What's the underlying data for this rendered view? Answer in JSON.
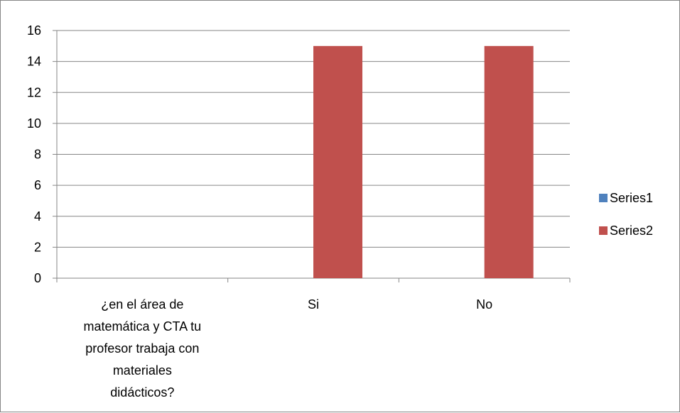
{
  "chart_data": {
    "type": "bar",
    "categories": [
      "¿en el área de matemática y CTA tu profesor trabaja con materiales didácticos?",
      "Si",
      "No"
    ],
    "category_label_lines": [
      [
        "¿en el área de",
        "matemática y CTA tu",
        "profesor trabaja con",
        "materiales",
        "didácticos?"
      ],
      [
        "Si"
      ],
      [
        "No"
      ]
    ],
    "series": [
      {
        "name": "Series1",
        "values": [
          0,
          0,
          0
        ],
        "color": "#4f81bd"
      },
      {
        "name": "Series2",
        "values": [
          0,
          15,
          15
        ],
        "color": "#c0504d"
      }
    ],
    "title": "",
    "xlabel": "",
    "ylabel": "",
    "ylim": [
      0,
      16
    ],
    "y_step": 2,
    "grid": true,
    "legend_position": "right"
  }
}
